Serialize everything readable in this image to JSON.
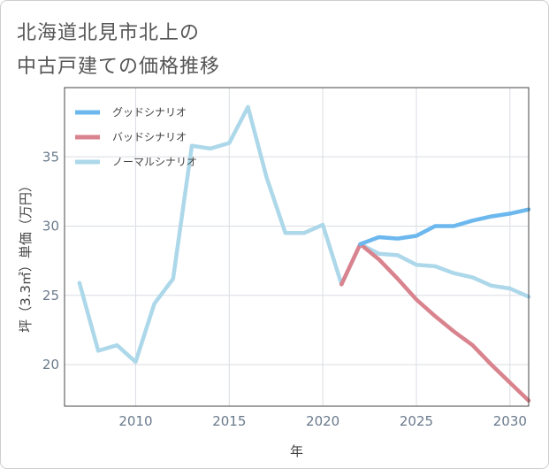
{
  "title": {
    "line1": "北海道北見市北上の",
    "line2": "中古戸建ての価格推移"
  },
  "chart_data": {
    "type": "line",
    "xlabel": "年",
    "ylabel": "坪（3.3㎡）単価（万円）",
    "xlim": [
      2006.2,
      2031
    ],
    "ylim": [
      17,
      40
    ],
    "xticks": [
      2010,
      2015,
      2020,
      2025,
      2030
    ],
    "yticks": [
      20,
      25,
      30,
      35
    ],
    "grid": true,
    "legend_position": "top-left",
    "series": [
      {
        "name": "ノーマルシナリオ",
        "color": "#add8ea",
        "x": [
          2007,
          2008,
          2009,
          2010,
          2011,
          2012,
          2013,
          2014,
          2015,
          2016,
          2017,
          2018,
          2019,
          2020,
          2021,
          2022,
          2023,
          2024,
          2025,
          2026,
          2027,
          2028,
          2029,
          2030,
          2031
        ],
        "values": [
          25.9,
          21.0,
          21.4,
          20.2,
          24.4,
          26.2,
          35.8,
          35.6,
          36.0,
          38.6,
          33.5,
          29.5,
          29.5,
          30.1,
          25.8,
          28.7,
          28.0,
          27.9,
          27.2,
          27.1,
          26.6,
          26.3,
          25.7,
          25.5,
          24.9
        ]
      },
      {
        "name": "バッドシナリオ",
        "color": "#d9838e",
        "x": [
          2021,
          2022,
          2023,
          2024,
          2025,
          2026,
          2027,
          2028,
          2029,
          2030,
          2031
        ],
        "values": [
          25.8,
          28.7,
          27.6,
          26.2,
          24.7,
          23.5,
          22.4,
          21.4,
          20.0,
          18.7,
          17.4
        ]
      },
      {
        "name": "グッドシナリオ",
        "color": "#6cb8ee",
        "x": [
          2022,
          2023,
          2024,
          2025,
          2026,
          2027,
          2028,
          2029,
          2030,
          2031
        ],
        "values": [
          28.7,
          29.2,
          29.1,
          29.3,
          30.0,
          30.0,
          30.4,
          30.7,
          30.9,
          31.2
        ]
      }
    ],
    "legend": [
      "グッドシナリオ",
      "バッドシナリオ",
      "ノーマルシナリオ"
    ]
  }
}
